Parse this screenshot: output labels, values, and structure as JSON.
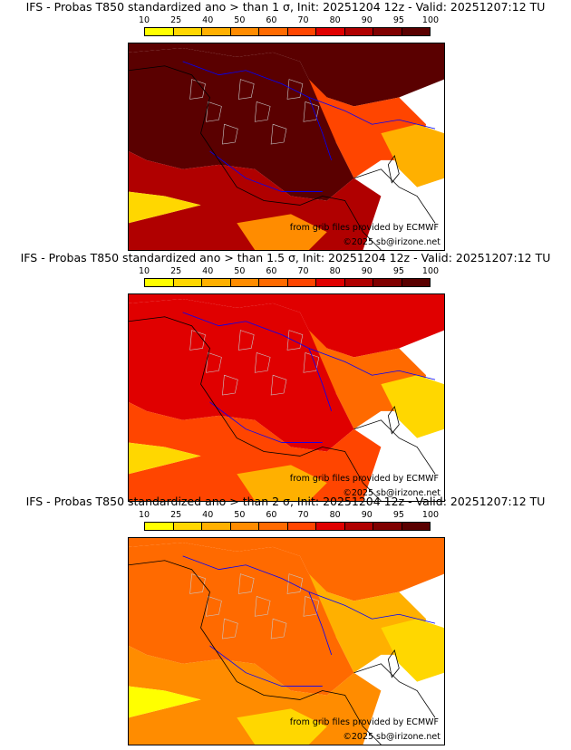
{
  "colorbar": {
    "ticks": [
      "10",
      "25",
      "40",
      "50",
      "60",
      "70",
      "80",
      "90",
      "95",
      "100"
    ],
    "colors": [
      "#ffff00",
      "#ffd700",
      "#ffb000",
      "#ff8c00",
      "#ff6a00",
      "#ff4500",
      "#e00000",
      "#b00000",
      "#800000",
      "#5a0000"
    ]
  },
  "panels": [
    {
      "title": "IFS - Probas T850  standardized ano > than 1 σ, Init: 20251204 12z - Valid: 20251207:12 TU",
      "credit_data": "from grib files provided by ECMWF",
      "credit_copy": "©2025 sb@irizone.net",
      "intensity": 1.0
    },
    {
      "title": "IFS - Probas T850  standardized ano > than 1.5 σ, Init: 20251204 12z - Valid: 20251207:12 TU",
      "credit_data": "from grib files provided by ECMWF",
      "credit_copy": "©2025 sb@irizone.net",
      "intensity": 0.7
    },
    {
      "title": "IFS - Probas T850  standardized ano > than 2 σ, Init: 20251204 12z - Valid: 20251207:12 TU",
      "credit_data": "from grib files provided by ECMWF",
      "credit_copy": "©2025 sb@irizone.net",
      "intensity": 0.4
    }
  ],
  "map_colors": {
    "border": "#0000ff",
    "coast": "#000000",
    "region": "#c8c8c8"
  }
}
